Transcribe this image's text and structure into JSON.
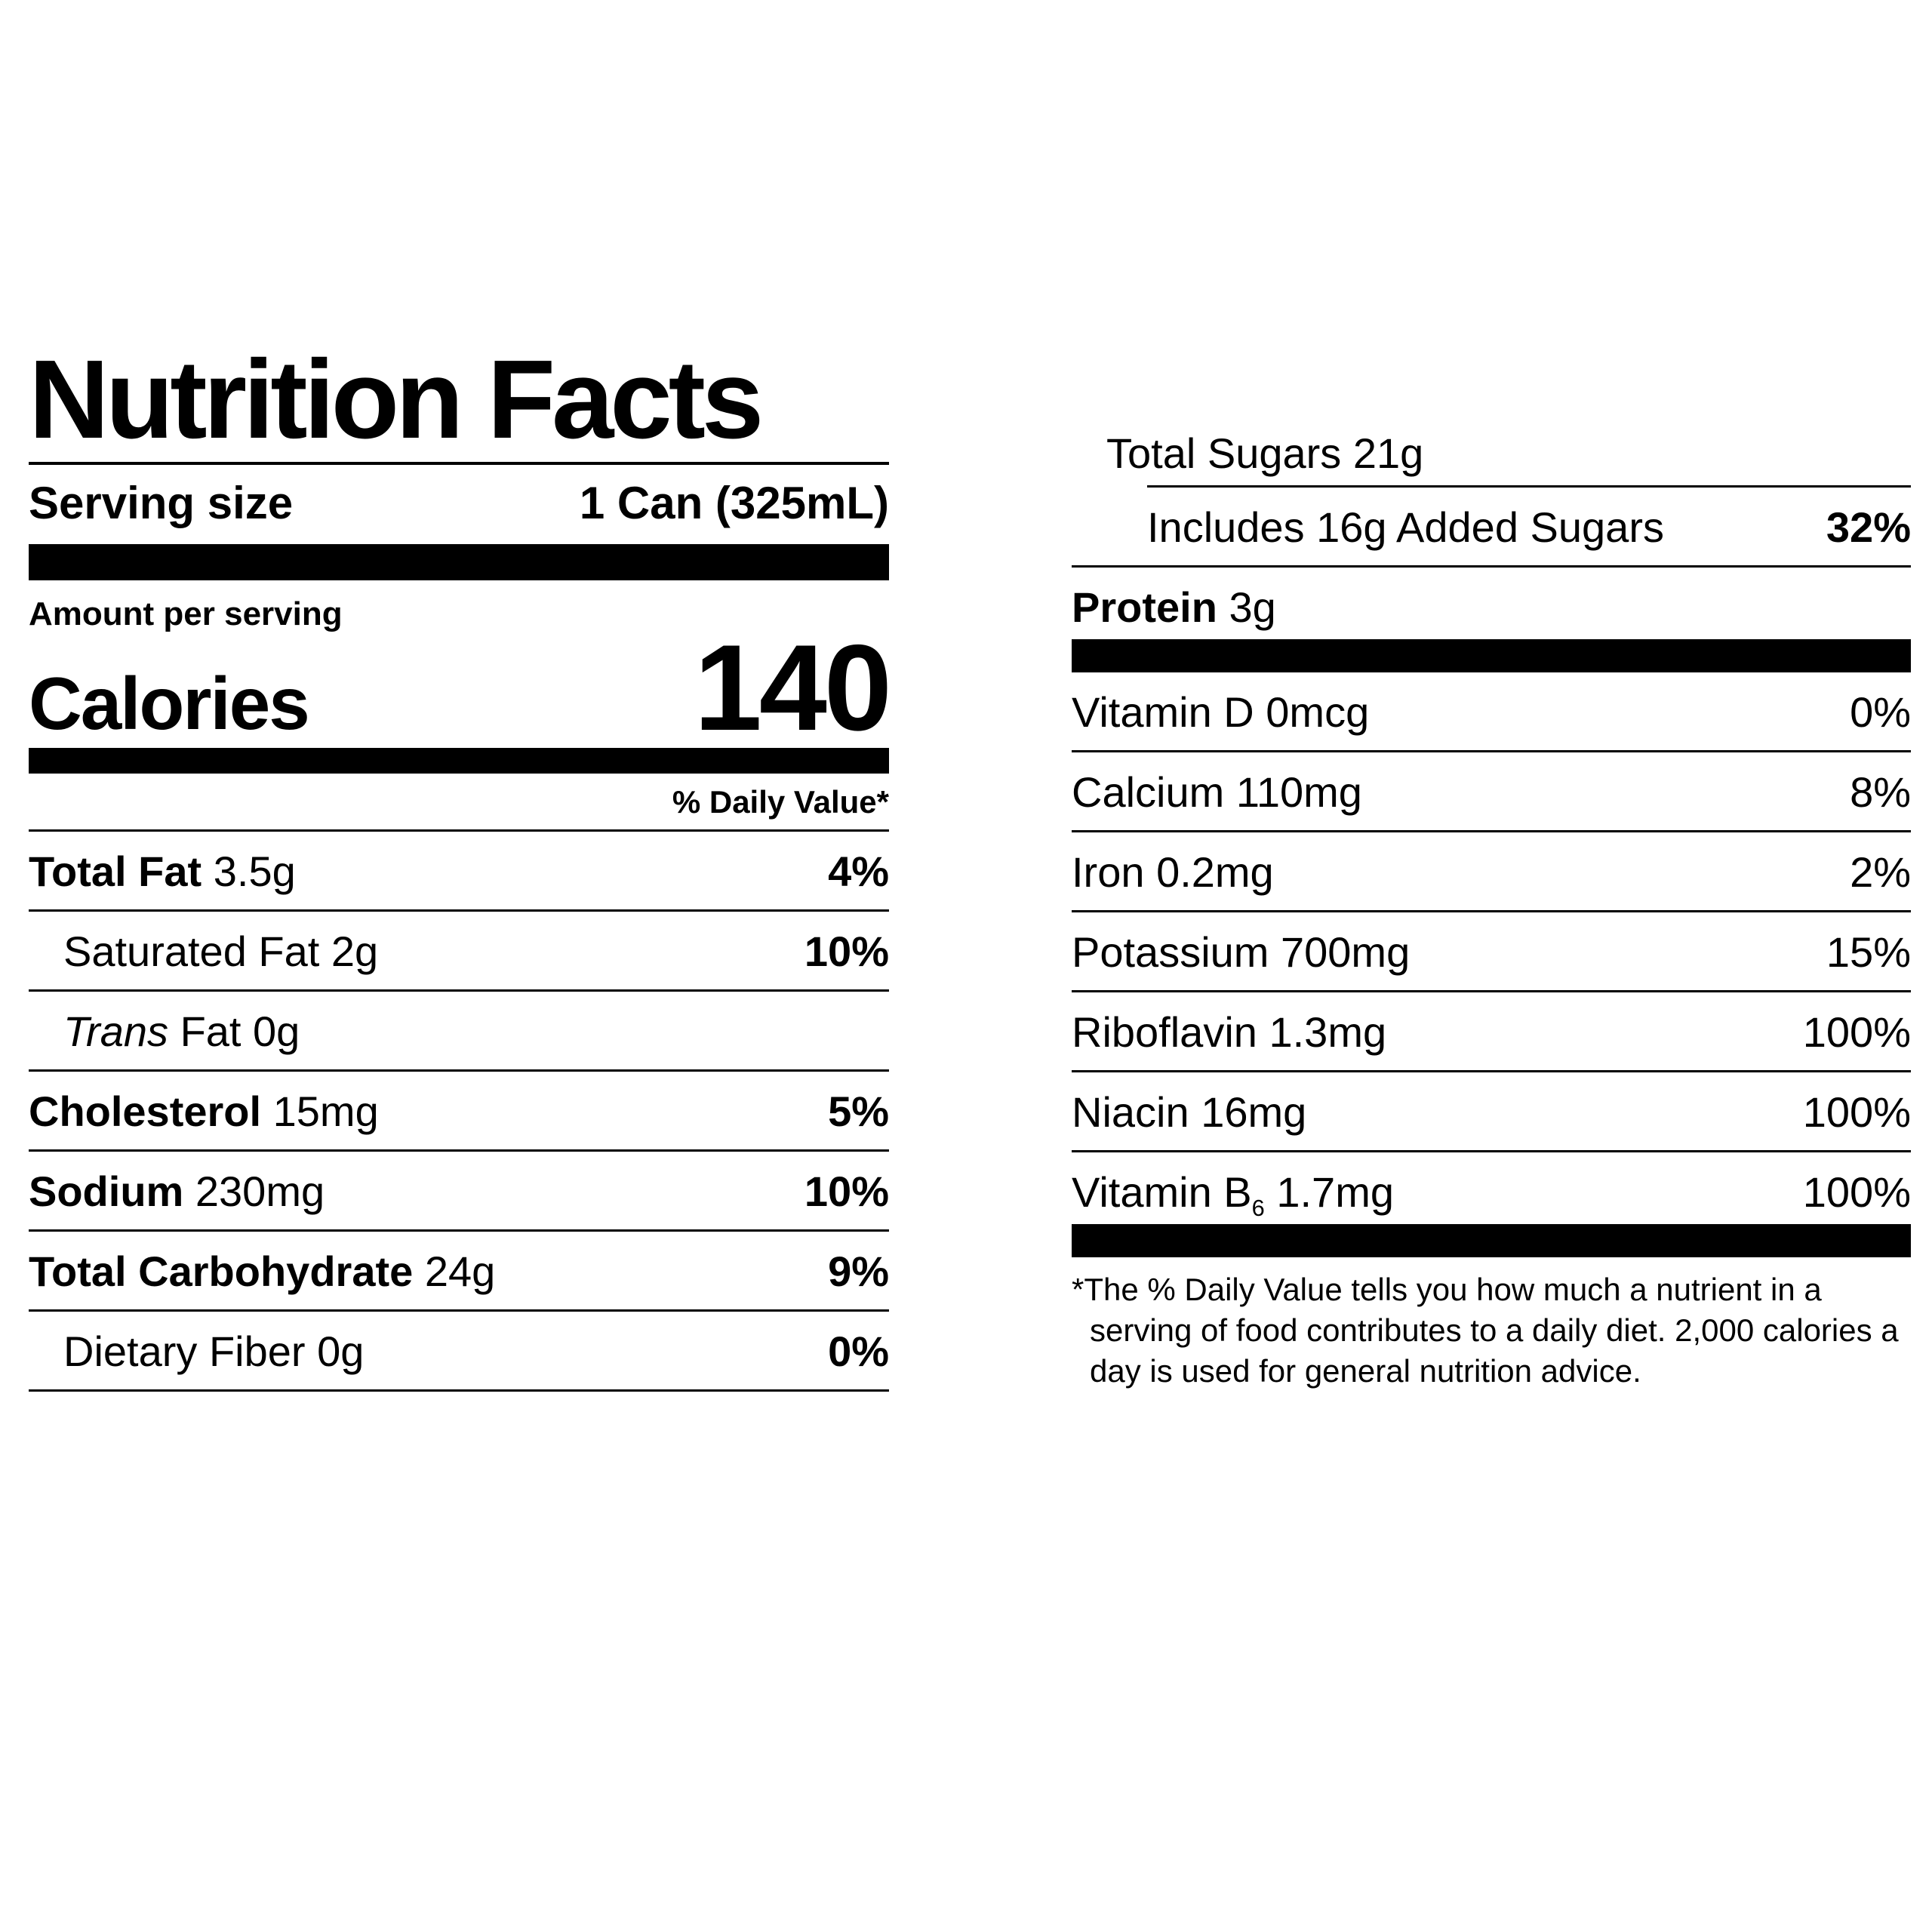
{
  "nutrition": {
    "title": "Nutrition Facts",
    "serving_size_label": "Serving size",
    "serving_size_value": "1 Can (325mL)",
    "amount_per_serving": "Amount per serving",
    "calories_label": "Calories",
    "calories_value": "140",
    "daily_value_header": "% Daily Value*",
    "left_rows": [
      {
        "name": "Total Fat",
        "amount": "3.5g",
        "dv": "4%"
      },
      {
        "name": "Saturated Fat",
        "amount": "2g",
        "dv": "10%"
      },
      {
        "name": "Trans",
        "amount": "Fat 0g",
        "dv": ""
      },
      {
        "name": "Cholesterol",
        "amount": "15mg",
        "dv": "5%"
      },
      {
        "name": "Sodium",
        "amount": "230mg",
        "dv": "10%"
      },
      {
        "name": "Total Carbohydrate",
        "amount": "24g",
        "dv": "9%"
      },
      {
        "name": "Dietary Fiber",
        "amount": "0g",
        "dv": "0%"
      }
    ],
    "sugars": {
      "total_name": "Total Sugars",
      "total_amount": "21g",
      "added_name": "Includes 16g Added Sugars",
      "added_dv": "32%"
    },
    "protein": {
      "name": "Protein",
      "amount": "3g"
    },
    "vitamin_rows": [
      {
        "name": "Vitamin D",
        "amount": "0mcg",
        "dv": "0%"
      },
      {
        "name": "Calcium",
        "amount": "110mg",
        "dv": "8%"
      },
      {
        "name": "Iron",
        "amount": "0.2mg",
        "dv": "2%"
      },
      {
        "name": "Potassium",
        "amount": "700mg",
        "dv": "15%"
      },
      {
        "name": "Riboflavin",
        "amount": "1.3mg",
        "dv": "100%"
      },
      {
        "name": "Niacin",
        "amount": "16mg",
        "dv": "100%"
      },
      {
        "name": "Vitamin B",
        "name_sub": "6",
        "amount": "1.7mg",
        "dv": "100%"
      }
    ],
    "footnote": "*The % Daily Value tells you how much a nutrient in a serving of food contributes to a daily diet. 2,000 calories a day is used for general nutrition advice."
  }
}
